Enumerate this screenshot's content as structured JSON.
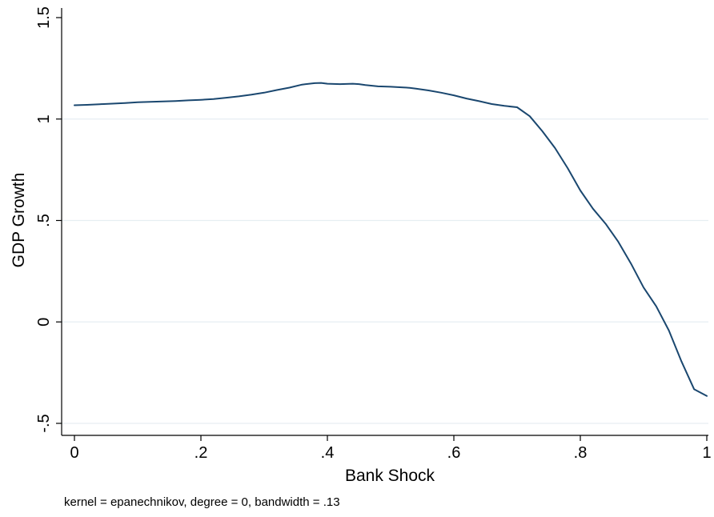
{
  "chart_data": {
    "type": "line",
    "title": "",
    "xlabel": "Bank Shock",
    "ylabel": "GDP Growth",
    "note": "kernel = epanechnikov, degree = 0, bandwidth = .13",
    "xlim": [
      0,
      1
    ],
    "ylim": [
      -0.5,
      1.5
    ],
    "x_ticks": [
      {
        "value": 0,
        "label": "0"
      },
      {
        "value": 0.2,
        "label": ".2"
      },
      {
        "value": 0.4,
        "label": ".4"
      },
      {
        "value": 0.6,
        "label": ".6"
      },
      {
        "value": 0.8,
        "label": ".8"
      },
      {
        "value": 1,
        "label": "1"
      }
    ],
    "y_ticks": [
      {
        "value": -0.5,
        "label": "-.5"
      },
      {
        "value": 0,
        "label": "0"
      },
      {
        "value": 0.5,
        "label": ".5"
      },
      {
        "value": 1,
        "label": "1"
      },
      {
        "value": 1.5,
        "label": "1.5"
      }
    ],
    "grid": true,
    "line_color": "#1a476f",
    "grid_color": "#e6eef2",
    "series": [
      {
        "x": [
          0,
          0.02,
          0.04,
          0.06,
          0.08,
          0.1,
          0.12,
          0.14,
          0.16,
          0.18,
          0.2,
          0.22,
          0.24,
          0.26,
          0.28,
          0.3,
          0.32,
          0.34,
          0.36,
          0.38,
          0.39,
          0.4,
          0.42,
          0.44,
          0.45,
          0.46,
          0.48,
          0.5,
          0.52,
          0.53,
          0.54,
          0.56,
          0.58,
          0.6,
          0.62,
          0.64,
          0.66,
          0.68,
          0.7,
          0.72,
          0.74,
          0.76,
          0.78,
          0.8,
          0.82,
          0.84,
          0.86,
          0.88,
          0.9,
          0.92,
          0.94,
          0.96,
          0.98,
          1.0
        ],
        "y": [
          1.068,
          1.07,
          1.073,
          1.076,
          1.079,
          1.083,
          1.085,
          1.087,
          1.089,
          1.092,
          1.095,
          1.099,
          1.105,
          1.112,
          1.12,
          1.13,
          1.143,
          1.155,
          1.17,
          1.177,
          1.178,
          1.174,
          1.172,
          1.174,
          1.172,
          1.168,
          1.161,
          1.159,
          1.156,
          1.154,
          1.15,
          1.141,
          1.13,
          1.117,
          1.101,
          1.088,
          1.074,
          1.065,
          1.058,
          1.014,
          0.94,
          0.857,
          0.758,
          0.648,
          0.558,
          0.484,
          0.395,
          0.288,
          0.17,
          0.077,
          -0.042,
          -0.195,
          -0.332,
          -0.365
        ]
      }
    ]
  }
}
